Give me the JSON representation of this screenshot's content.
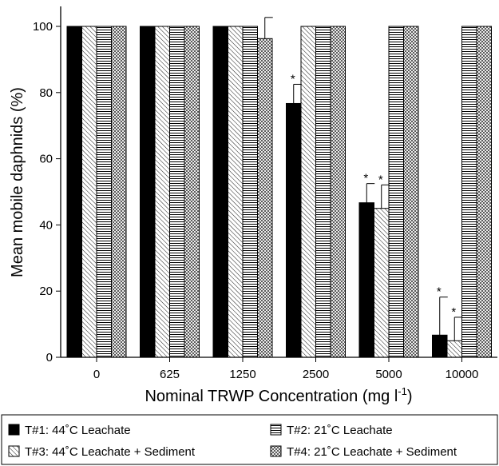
{
  "chart_data": {
    "type": "bar",
    "xlabel": "Nominal TRWP Concentration (mg l",
    "xlabel_superscript": "-1",
    "xlabel_suffix": ")",
    "ylabel": "Mean mobile daphnids (%)",
    "ylim": [
      0,
      100
    ],
    "yticks": [
      "0",
      "20",
      "40",
      "60",
      "80",
      "100"
    ],
    "categories": [
      "0",
      "625",
      "1250",
      "2500",
      "5000",
      "10000"
    ],
    "grid": false,
    "legend_position": "bottom",
    "series": [
      {
        "name": "T#1: 44˚C Leachate",
        "pattern": "solid",
        "color": "#000000",
        "values": [
          100,
          100,
          100,
          76.7,
          46.7,
          6.7
        ],
        "error": [
          null,
          null,
          null,
          5.8,
          5.8,
          11.5
        ],
        "significant": [
          false,
          false,
          false,
          true,
          true,
          true
        ]
      },
      {
        "name": "T#2: 21˚C Leachate",
        "pattern": "horizontal-lines",
        "color": "#000000",
        "values": [
          100,
          100,
          100,
          100,
          100,
          100
        ],
        "error": [
          null,
          null,
          null,
          null,
          null,
          null
        ],
        "significant": [
          false,
          false,
          false,
          false,
          false,
          false
        ]
      },
      {
        "name": "T#3: 44˚C Leachate + Sediment",
        "pattern": "diagonal-lines",
        "color": "#000000",
        "values": [
          100,
          100,
          100,
          100,
          45,
          5
        ],
        "error": [
          null,
          null,
          null,
          null,
          7.1,
          7.1
        ],
        "significant": [
          false,
          false,
          false,
          false,
          true,
          true
        ]
      },
      {
        "name": "T#4: 21˚C Leachate + Sediment",
        "pattern": "crosshatch",
        "color": "#000000",
        "values": [
          100,
          100,
          96.3,
          100,
          100,
          100
        ],
        "error": [
          null,
          null,
          6.4,
          null,
          null,
          null
        ],
        "significant": [
          false,
          false,
          false,
          false,
          false,
          false
        ]
      }
    ],
    "bar_order": [
      0,
      2,
      1,
      3
    ],
    "significance_marker": "*"
  }
}
